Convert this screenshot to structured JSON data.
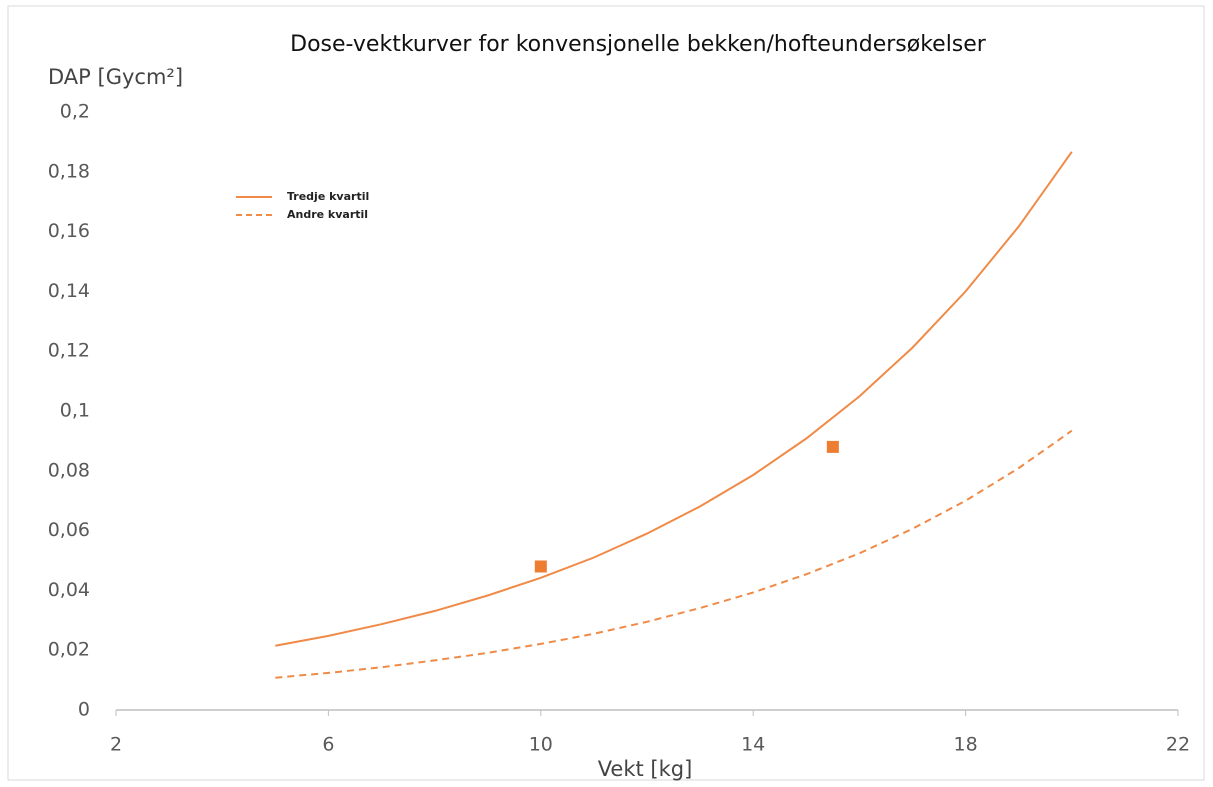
{
  "chart_data": {
    "type": "line",
    "title": "Dose-vektkurver for konvensjonelle bekken/hofteundersøkelser",
    "y_label": "DAP [Gycm²]",
    "x_label": "Vekt [kg]",
    "x": [
      5,
      6,
      7,
      8,
      9,
      10,
      11,
      12,
      13,
      14,
      15,
      16,
      17,
      18,
      19,
      20
    ],
    "series": [
      {
        "name": "Tredje kvartil",
        "color": "#ef8a47",
        "linestyle": "solid",
        "values": [
          0.0215,
          0.0248,
          0.0287,
          0.0331,
          0.0383,
          0.0442,
          0.051,
          0.059,
          0.0681,
          0.0786,
          0.0908,
          0.1049,
          0.1212,
          0.14,
          0.1617,
          0.1867
        ]
      },
      {
        "name": "Andre kvartil",
        "color": "#ef8a47",
        "linestyle": "dashed",
        "values": [
          0.0108,
          0.0124,
          0.0143,
          0.0166,
          0.0191,
          0.0221,
          0.0255,
          0.0295,
          0.0341,
          0.0393,
          0.0454,
          0.0524,
          0.0606,
          0.07,
          0.0809,
          0.0934
        ]
      }
    ],
    "points": {
      "color": "#ed7d31",
      "x": [
        10,
        15.5
      ],
      "values": [
        0.048,
        0.088
      ]
    },
    "xlim": [
      2,
      22
    ],
    "xticks": [
      2,
      6,
      10,
      14,
      18,
      22
    ],
    "ylim": [
      0,
      0.2
    ],
    "yticks": [
      0,
      {
        "value": 0.02,
        "label": "0,02"
      },
      {
        "value": 0.04,
        "label": "0,04"
      },
      {
        "value": 0.06,
        "label": "0,06"
      },
      {
        "value": 0.08,
        "label": "0,08"
      },
      {
        "value": 0.1,
        "label": "0,1"
      },
      {
        "value": 0.12,
        "label": "0,12"
      },
      {
        "value": 0.14,
        "label": "0,14"
      },
      {
        "value": 0.16,
        "label": "0,16"
      },
      {
        "value": 0.18,
        "label": "0,18"
      },
      {
        "value": 0.2,
        "label": "0,2"
      }
    ],
    "grid": false,
    "legend": "upper left"
  }
}
